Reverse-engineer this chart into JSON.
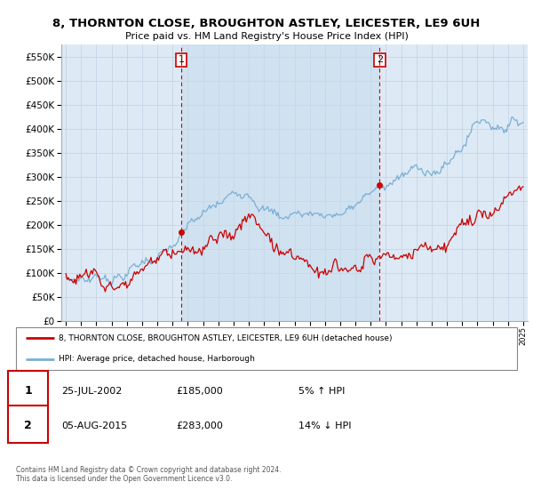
{
  "title": "8, THORNTON CLOSE, BROUGHTON ASTLEY, LEICESTER, LE9 6UH",
  "subtitle": "Price paid vs. HM Land Registry's House Price Index (HPI)",
  "legend_line1": "8, THORNTON CLOSE, BROUGHTON ASTLEY, LEICESTER, LE9 6UH (detached house)",
  "legend_line2": "HPI: Average price, detached house, Harborough",
  "footer": "Contains HM Land Registry data © Crown copyright and database right 2024.\nThis data is licensed under the Open Government Licence v3.0.",
  "annotation1_date": "25-JUL-2002",
  "annotation1_price": "£185,000",
  "annotation1_hpi": "5% ↑ HPI",
  "annotation2_date": "05-AUG-2015",
  "annotation2_price": "£283,000",
  "annotation2_hpi": "14% ↓ HPI",
  "ylim": [
    0,
    575000
  ],
  "yticks": [
    0,
    50000,
    100000,
    150000,
    200000,
    250000,
    300000,
    350000,
    400000,
    450000,
    500000,
    550000
  ],
  "xlim_start": 1994.7,
  "xlim_end": 2025.3,
  "sale1_x": 2002.56,
  "sale1_y": 185000,
  "sale2_x": 2015.59,
  "sale2_y": 283000,
  "line_color_red": "#cc0000",
  "line_color_blue": "#7aafd4",
  "vline_color": "#cc0000",
  "grid_color": "#c8d8e8",
  "bg_color": "#ffffff",
  "plot_bg_color": "#ddeaf5"
}
